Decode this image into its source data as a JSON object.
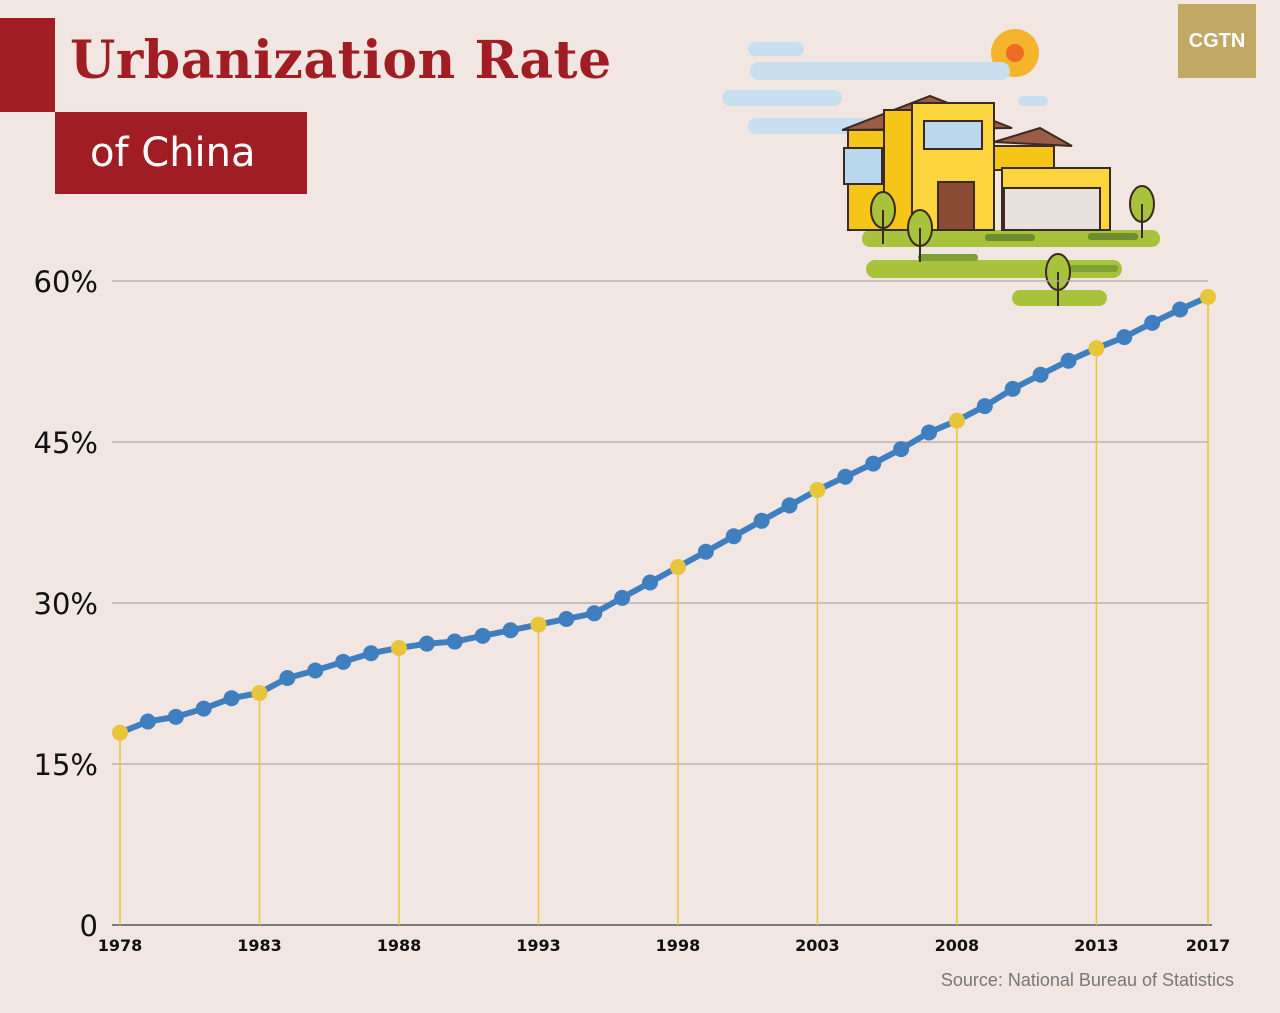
{
  "header": {
    "title": "Urbanization Rate",
    "subtitle": "of China",
    "logo": "CGTN"
  },
  "footer": {
    "source": "Source: National Bureau of Statistics"
  },
  "illustration": {
    "icons": [
      "sun-icon",
      "cloud-icon",
      "house-icon",
      "tree-icon"
    ]
  },
  "colors": {
    "title_red": "#a01d24",
    "line_blue": "#3f7fc0",
    "highlight_yellow": "#e8c53a",
    "logo_gold": "#c1a865",
    "background": "#f2e6e2"
  },
  "chart_data": {
    "type": "line",
    "title": "Urbanization Rate of China",
    "xlabel": "",
    "ylabel": "",
    "ylim": [
      0,
      60
    ],
    "y_ticks": [
      0,
      15,
      30,
      45,
      60
    ],
    "y_tick_labels": [
      "0",
      "15%",
      "30%",
      "45%",
      "60%"
    ],
    "x_ticks": [
      1978,
      1983,
      1988,
      1993,
      1998,
      2003,
      2008,
      2013,
      2017
    ],
    "grid": true,
    "legend": "none",
    "series": [
      {
        "x": [
          1978,
          1979,
          1980,
          1981,
          1982,
          1983,
          1984,
          1985,
          1986,
          1987,
          1988,
          1989,
          1990,
          1991,
          1992,
          1993,
          1994,
          1995,
          1996,
          1997,
          1998,
          1999,
          2000,
          2001,
          2002,
          2003,
          2004,
          2005,
          2006,
          2007,
          2008,
          2009,
          2010,
          2011,
          2012,
          2013,
          2014,
          2015,
          2016,
          2017
        ],
        "values": [
          17.92,
          18.96,
          19.39,
          20.16,
          21.13,
          21.62,
          23.01,
          23.71,
          24.52,
          25.32,
          25.81,
          26.21,
          26.41,
          26.94,
          27.46,
          27.99,
          28.51,
          29.04,
          30.48,
          31.91,
          33.35,
          34.78,
          36.22,
          37.66,
          39.09,
          40.53,
          41.76,
          42.99,
          44.34,
          45.89,
          46.99,
          48.34,
          49.95,
          51.27,
          52.57,
          53.73,
          54.77,
          56.1,
          57.35,
          58.52
        ],
        "highlighted_years": [
          1978,
          1983,
          1988,
          1993,
          1998,
          2003,
          2008,
          2013,
          2017
        ]
      }
    ]
  }
}
